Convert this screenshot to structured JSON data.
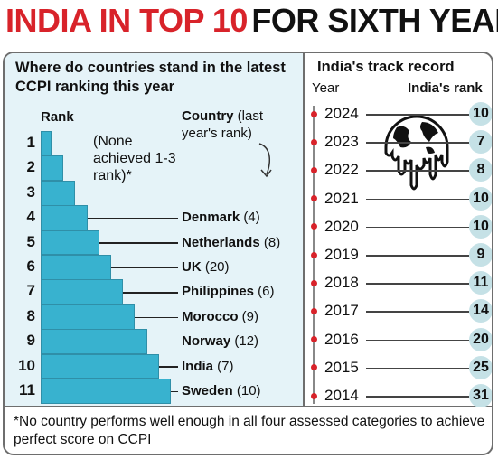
{
  "header": {
    "title_red": "INDIA IN TOP 10",
    "title_black": "FOR SIXTH YEAR"
  },
  "left": {
    "subtitle": "Where do countries stand in the latest CCPI ranking this year",
    "rank_header": "Rank",
    "country_header_bold": "Country",
    "country_header_rest": " (last year's rank)",
    "none_note": "(None achieved 1-3 rank)*"
  },
  "right": {
    "subtitle": "India's track record",
    "year_header": "Year",
    "rank_header": "India's rank"
  },
  "footnote": "*No country performs well enough in all four assessed categories to achieve perfect score on CCPI",
  "icons": {
    "globe": "melting-globe-icon",
    "arrow": "curved-arrow-icon"
  },
  "colors": {
    "title_red": "#d8232a",
    "bar": "#38b2cf",
    "panel": "#e5f3f8",
    "rank_circle": "#c5e1e6",
    "dot": "#d8232a"
  },
  "chart_data": [
    {
      "type": "bar",
      "ranks": [
        1,
        2,
        3,
        4,
        5,
        6,
        7,
        8,
        9,
        10,
        11
      ],
      "entries": [
        {
          "rank": 4,
          "country": "Denmark",
          "last_year": "(4)"
        },
        {
          "rank": 5,
          "country": "Netherlands",
          "last_year": "(8)"
        },
        {
          "rank": 6,
          "country": "UK",
          "last_year": "(20)"
        },
        {
          "rank": 7,
          "country": "Philippines",
          "last_year": "(6)"
        },
        {
          "rank": 8,
          "country": "Morocco",
          "last_year": "(9)"
        },
        {
          "rank": 9,
          "country": "Norway",
          "last_year": "(12)"
        },
        {
          "rank": 10,
          "country": "India",
          "last_year": "(7)"
        },
        {
          "rank": 11,
          "country": "Sweden",
          "last_year": "(10)"
        }
      ]
    },
    {
      "type": "table",
      "years": [
        "2024",
        "2023",
        "2022",
        "2021",
        "2020",
        "2019",
        "2018",
        "2017",
        "2016",
        "2015",
        "2014"
      ],
      "india_rank": [
        "10",
        "7",
        "8",
        "10",
        "10",
        "9",
        "11",
        "14",
        "20",
        "25",
        "31"
      ]
    }
  ]
}
